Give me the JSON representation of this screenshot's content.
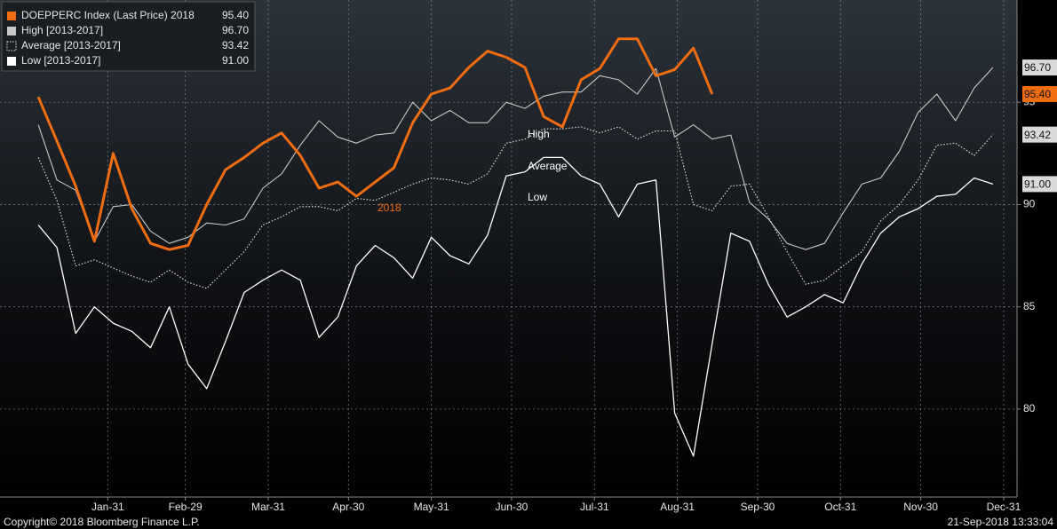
{
  "chart_data": {
    "type": "line",
    "x": [
      5,
      12,
      19,
      26,
      33,
      40,
      47,
      54,
      61,
      68,
      75,
      82,
      89,
      96,
      103,
      110,
      117,
      124,
      131,
      138,
      145,
      152,
      159,
      166,
      173,
      180,
      187,
      194,
      201,
      208,
      215,
      222,
      229,
      236,
      243,
      250,
      257,
      264,
      271,
      278,
      285,
      292,
      299,
      306,
      313,
      320,
      327,
      334,
      341,
      348,
      355,
      362
    ],
    "xlim": [
      -9.3,
      371
    ],
    "xticks": [
      {
        "value": 31,
        "label": "Jan-31"
      },
      {
        "value": 60,
        "label": "Feb-29"
      },
      {
        "value": 91,
        "label": "Mar-31"
      },
      {
        "value": 121,
        "label": "Apr-30"
      },
      {
        "value": 152,
        "label": "May-31"
      },
      {
        "value": 182,
        "label": "Jun-30"
      },
      {
        "value": 213,
        "label": "Jul-31"
      },
      {
        "value": 244,
        "label": "Aug-31"
      },
      {
        "value": 274,
        "label": "Sep-30"
      },
      {
        "value": 305,
        "label": "Oct-31"
      },
      {
        "value": 335,
        "label": "Nov-30"
      },
      {
        "value": 366,
        "label": "Dec-31"
      }
    ],
    "ylim": [
      75.7,
      100
    ],
    "yticks": [
      80,
      85,
      90,
      95
    ],
    "grid": true,
    "legend": "top-left",
    "series": [
      {
        "name": "DOEPPERC Index (Last Price) 2018",
        "last_label": "95.40",
        "color": "#f26c10",
        "line_style": "solid",
        "values": [
          95.26,
          93.1,
          90.9,
          88.2,
          92.5,
          89.8,
          88.1,
          87.8,
          88.0,
          90.0,
          91.7,
          92.3,
          93.0,
          93.5,
          92.4,
          90.8,
          91.1,
          90.4,
          91.1,
          91.8,
          94.0,
          95.4,
          95.7,
          96.7,
          97.5,
          97.2,
          96.7,
          94.3,
          93.8,
          96.1,
          96.65,
          98.1,
          98.1,
          96.3,
          96.6,
          97.65,
          95.4,
          null,
          null,
          null,
          null,
          null,
          null,
          null,
          null,
          null,
          null,
          null,
          null,
          null,
          null,
          null
        ]
      },
      {
        "name": "High [2013-2017]",
        "last_label": "96.70",
        "color": "#c8c8c8",
        "line_style": "solid",
        "values": [
          93.9,
          91.2,
          90.7,
          88.2,
          89.9,
          90.0,
          88.7,
          88.1,
          88.4,
          89.1,
          89.0,
          89.3,
          90.8,
          91.5,
          92.9,
          94.1,
          93.3,
          93.0,
          93.4,
          93.5,
          95.0,
          94.1,
          94.6,
          94.0,
          94.0,
          95.0,
          94.7,
          95.3,
          95.5,
          95.5,
          96.3,
          96.1,
          95.4,
          96.65,
          93.3,
          93.9,
          93.2,
          93.4,
          90.1,
          89.3,
          88.1,
          87.8,
          88.1,
          89.6,
          91.0,
          91.3,
          92.6,
          94.5,
          95.4,
          94.1,
          95.7,
          96.7
        ]
      },
      {
        "name": "Average [2013-2017]",
        "last_label": "93.42",
        "color": "#e8e8e8",
        "line_style": "dotted",
        "values": [
          92.3,
          90.2,
          87.0,
          87.3,
          86.9,
          86.5,
          86.2,
          86.8,
          86.2,
          85.9,
          86.8,
          87.7,
          89.0,
          89.4,
          89.9,
          89.9,
          89.7,
          90.3,
          90.2,
          90.6,
          91.0,
          91.3,
          91.2,
          91.0,
          91.5,
          93.0,
          93.2,
          93.7,
          93.7,
          93.8,
          93.5,
          93.8,
          93.2,
          93.6,
          93.6,
          90.0,
          89.7,
          90.9,
          91.0,
          89.4,
          87.7,
          86.1,
          86.3,
          87.0,
          87.7,
          89.2,
          90.0,
          91.2,
          92.9,
          93.0,
          92.4,
          93.42
        ]
      },
      {
        "name": "Low [2013-2017]",
        "last_label": "91.00",
        "color": "#ffffff",
        "line_style": "solid",
        "values": [
          89.0,
          87.9,
          83.7,
          85.0,
          84.2,
          83.8,
          83.0,
          85.0,
          82.2,
          81.0,
          83.3,
          85.7,
          86.3,
          86.8,
          86.3,
          83.5,
          84.5,
          87.0,
          88.0,
          87.4,
          86.4,
          88.4,
          87.5,
          87.1,
          88.5,
          91.4,
          91.6,
          92.3,
          92.3,
          91.4,
          91.0,
          89.4,
          91.0,
          91.2,
          79.8,
          77.7,
          83.2,
          88.6,
          88.2,
          86.1,
          84.5,
          85.0,
          85.6,
          85.2,
          87.1,
          88.6,
          89.4,
          89.8,
          90.4,
          90.5,
          91.3,
          91.0
        ]
      }
    ],
    "annotations": [
      "High",
      "Average",
      "Low",
      "2018"
    ],
    "footer_left": "Copyright© 2018 Bloomberg Finance L.P.",
    "footer_right": "21-Sep-2018 13:33:04"
  }
}
